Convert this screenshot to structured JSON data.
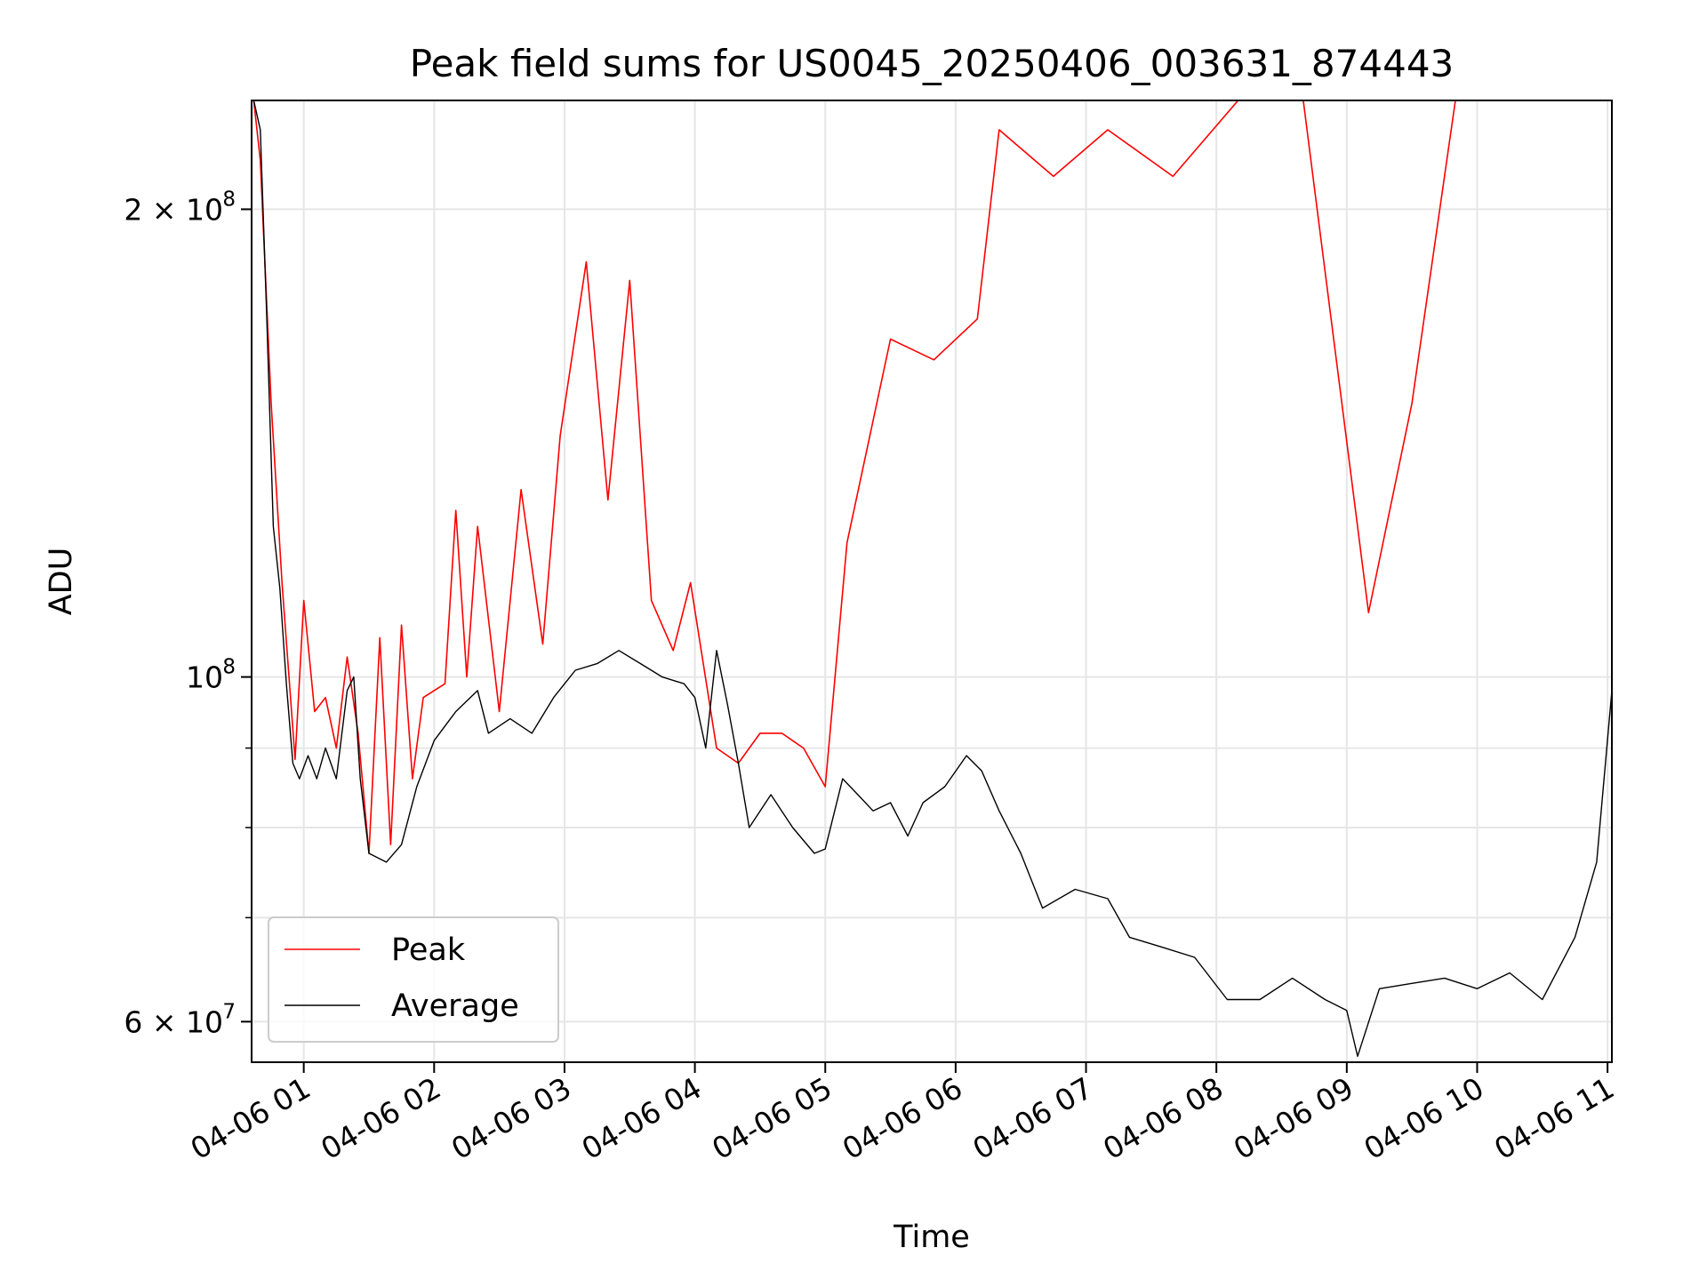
{
  "chart_data": {
    "type": "line",
    "title": "Peak field sums for US0045_20250406_003631_874443",
    "xlabel": "Time",
    "ylabel": "ADU",
    "yscale": "log",
    "grid": true,
    "legend_position": "lower-left",
    "xlim": [
      "2025-04-06 00:36",
      "2025-04-06 11:02"
    ],
    "ylim": [
      56500000,
      235000000
    ],
    "x_ticks": [
      {
        "t": "2025-04-06 01:00",
        "label": "04-06 01"
      },
      {
        "t": "2025-04-06 02:00",
        "label": "04-06 02"
      },
      {
        "t": "2025-04-06 03:00",
        "label": "04-06 03"
      },
      {
        "t": "2025-04-06 04:00",
        "label": "04-06 04"
      },
      {
        "t": "2025-04-06 05:00",
        "label": "04-06 05"
      },
      {
        "t": "2025-04-06 06:00",
        "label": "04-06 06"
      },
      {
        "t": "2025-04-06 07:00",
        "label": "04-06 07"
      },
      {
        "t": "2025-04-06 08:00",
        "label": "04-06 08"
      },
      {
        "t": "2025-04-06 09:00",
        "label": "04-06 09"
      },
      {
        "t": "2025-04-06 10:00",
        "label": "04-06 10"
      },
      {
        "t": "2025-04-06 11:00",
        "label": "04-06 11"
      }
    ],
    "y_major_ticks": [
      {
        "v": 60000000,
        "base": "6 × 10",
        "exp": "7"
      },
      {
        "v": 100000000,
        "base": "10",
        "exp": "8"
      },
      {
        "v": 200000000,
        "base": "2 × 10",
        "exp": "8"
      }
    ],
    "y_minor_ticks": [
      70000000,
      80000000,
      90000000
    ],
    "series": [
      {
        "name": "Peak",
        "color": "#ff0000",
        "points": [
          [
            "2025-04-06 00:37",
            235000000
          ],
          [
            "2025-04-06 00:40",
            215000000
          ],
          [
            "2025-04-06 00:45",
            150000000
          ],
          [
            "2025-04-06 00:50",
            115000000
          ],
          [
            "2025-04-06 00:53",
            101000000
          ],
          [
            "2025-04-06 00:56",
            88500000
          ],
          [
            "2025-04-06 01:00",
            112000000
          ],
          [
            "2025-04-06 01:05",
            95000000
          ],
          [
            "2025-04-06 01:10",
            97000000
          ],
          [
            "2025-04-06 01:15",
            90000000
          ],
          [
            "2025-04-06 01:20",
            103000000
          ],
          [
            "2025-04-06 01:25",
            92000000
          ],
          [
            "2025-04-06 01:30",
            77000000
          ],
          [
            "2025-04-06 01:35",
            106000000
          ],
          [
            "2025-04-06 01:40",
            78000000
          ],
          [
            "2025-04-06 01:45",
            108000000
          ],
          [
            "2025-04-06 01:50",
            86000000
          ],
          [
            "2025-04-06 01:55",
            97000000
          ],
          [
            "2025-04-06 02:05",
            99000000
          ],
          [
            "2025-04-06 02:10",
            128000000
          ],
          [
            "2025-04-06 02:15",
            100000000
          ],
          [
            "2025-04-06 02:20",
            125000000
          ],
          [
            "2025-04-06 02:30",
            95000000
          ],
          [
            "2025-04-06 02:40",
            132000000
          ],
          [
            "2025-04-06 02:50",
            105000000
          ],
          [
            "2025-04-06 02:58",
            143000000
          ],
          [
            "2025-04-06 03:10",
            185000000
          ],
          [
            "2025-04-06 03:20",
            130000000
          ],
          [
            "2025-04-06 03:30",
            180000000
          ],
          [
            "2025-04-06 03:40",
            112000000
          ],
          [
            "2025-04-06 03:50",
            104000000
          ],
          [
            "2025-04-06 03:58",
            115000000
          ],
          [
            "2025-04-06 04:10",
            90000000
          ],
          [
            "2025-04-06 04:20",
            88000000
          ],
          [
            "2025-04-06 04:30",
            92000000
          ],
          [
            "2025-04-06 04:40",
            92000000
          ],
          [
            "2025-04-06 04:50",
            90000000
          ],
          [
            "2025-04-06 05:00",
            85000000
          ],
          [
            "2025-04-06 05:10",
            122000000
          ],
          [
            "2025-04-06 05:30",
            165000000
          ],
          [
            "2025-04-06 05:50",
            160000000
          ],
          [
            "2025-04-06 06:10",
            170000000
          ],
          [
            "2025-04-06 06:20",
            225000000
          ],
          [
            "2025-04-06 06:45",
            210000000
          ],
          [
            "2025-04-06 07:10",
            225000000
          ],
          [
            "2025-04-06 07:40",
            210000000
          ],
          [
            "2025-04-06 08:10",
            235000000
          ],
          [
            "2025-04-06 08:40",
            235000000
          ],
          [
            "2025-04-06 09:10",
            110000000
          ],
          [
            "2025-04-06 09:30",
            150000000
          ],
          [
            "2025-04-06 09:50",
            235000000
          ],
          [
            "2025-04-06 10:20",
            235000000
          ],
          [
            "2025-04-06 11:02",
            235000000
          ]
        ]
      },
      {
        "name": "Average",
        "color": "#000000",
        "points": [
          [
            "2025-04-06 00:37",
            235000000
          ],
          [
            "2025-04-06 00:40",
            225000000
          ],
          [
            "2025-04-06 00:43",
            170000000
          ],
          [
            "2025-04-06 00:46",
            125000000
          ],
          [
            "2025-04-06 00:49",
            114000000
          ],
          [
            "2025-04-06 00:52",
            99000000
          ],
          [
            "2025-04-06 00:55",
            88000000
          ],
          [
            "2025-04-06 00:58",
            86000000
          ],
          [
            "2025-04-06 01:02",
            89000000
          ],
          [
            "2025-04-06 01:06",
            86000000
          ],
          [
            "2025-04-06 01:10",
            90000000
          ],
          [
            "2025-04-06 01:15",
            86000000
          ],
          [
            "2025-04-06 01:20",
            98000000
          ],
          [
            "2025-04-06 01:23",
            100000000
          ],
          [
            "2025-04-06 01:26",
            86000000
          ],
          [
            "2025-04-06 01:30",
            77000000
          ],
          [
            "2025-04-06 01:38",
            76000000
          ],
          [
            "2025-04-06 01:45",
            78000000
          ],
          [
            "2025-04-06 01:52",
            85000000
          ],
          [
            "2025-04-06 02:00",
            91000000
          ],
          [
            "2025-04-06 02:10",
            95000000
          ],
          [
            "2025-04-06 02:20",
            98000000
          ],
          [
            "2025-04-06 02:25",
            92000000
          ],
          [
            "2025-04-06 02:35",
            94000000
          ],
          [
            "2025-04-06 02:45",
            92000000
          ],
          [
            "2025-04-06 02:55",
            97000000
          ],
          [
            "2025-04-06 03:05",
            101000000
          ],
          [
            "2025-04-06 03:15",
            102000000
          ],
          [
            "2025-04-06 03:25",
            104000000
          ],
          [
            "2025-04-06 03:35",
            102000000
          ],
          [
            "2025-04-06 03:45",
            100000000
          ],
          [
            "2025-04-06 03:55",
            99000000
          ],
          [
            "2025-04-06 04:00",
            97000000
          ],
          [
            "2025-04-06 04:05",
            90000000
          ],
          [
            "2025-04-06 04:10",
            104000000
          ],
          [
            "2025-04-06 04:15",
            96000000
          ],
          [
            "2025-04-06 04:20",
            88000000
          ],
          [
            "2025-04-06 04:25",
            80000000
          ],
          [
            "2025-04-06 04:35",
            84000000
          ],
          [
            "2025-04-06 04:45",
            80000000
          ],
          [
            "2025-04-06 04:55",
            77000000
          ],
          [
            "2025-04-06 05:00",
            77500000
          ],
          [
            "2025-04-06 05:08",
            86000000
          ],
          [
            "2025-04-06 05:15",
            84000000
          ],
          [
            "2025-04-06 05:22",
            82000000
          ],
          [
            "2025-04-06 05:30",
            83000000
          ],
          [
            "2025-04-06 05:38",
            79000000
          ],
          [
            "2025-04-06 05:45",
            83000000
          ],
          [
            "2025-04-06 05:55",
            85000000
          ],
          [
            "2025-04-06 06:05",
            89000000
          ],
          [
            "2025-04-06 06:12",
            87000000
          ],
          [
            "2025-04-06 06:20",
            82000000
          ],
          [
            "2025-04-06 06:30",
            77000000
          ],
          [
            "2025-04-06 06:40",
            71000000
          ],
          [
            "2025-04-06 06:55",
            73000000
          ],
          [
            "2025-04-06 07:10",
            72000000
          ],
          [
            "2025-04-06 07:20",
            68000000
          ],
          [
            "2025-04-06 07:35",
            67000000
          ],
          [
            "2025-04-06 07:50",
            66000000
          ],
          [
            "2025-04-06 08:05",
            62000000
          ],
          [
            "2025-04-06 08:20",
            62000000
          ],
          [
            "2025-04-06 08:35",
            64000000
          ],
          [
            "2025-04-06 08:50",
            62000000
          ],
          [
            "2025-04-06 09:00",
            61000000
          ],
          [
            "2025-04-06 09:05",
            57000000
          ],
          [
            "2025-04-06 09:15",
            63000000
          ],
          [
            "2025-04-06 09:30",
            63500000
          ],
          [
            "2025-04-06 09:45",
            64000000
          ],
          [
            "2025-04-06 10:00",
            63000000
          ],
          [
            "2025-04-06 10:15",
            64500000
          ],
          [
            "2025-04-06 10:30",
            62000000
          ],
          [
            "2025-04-06 10:45",
            68000000
          ],
          [
            "2025-04-06 10:55",
            76000000
          ],
          [
            "2025-04-06 11:02",
            98000000
          ]
        ]
      }
    ]
  }
}
